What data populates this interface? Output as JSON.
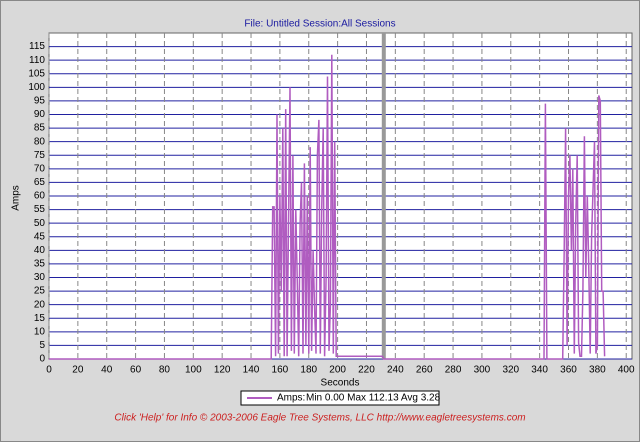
{
  "chart_data": {
    "type": "line",
    "title": "File: Untitled   Session:All Sessions",
    "x_label": "Seconds",
    "y_label": "Amps",
    "legend_stats": "Min 0.00 Max 112.13 Avg 3.28",
    "footer": "Click 'Help' for Info   © 2003-2006 Eagle Tree Systems, LLC      http://www.eagletreesystems.com",
    "xlim": [
      0,
      404
    ],
    "ylim": [
      0,
      120
    ],
    "xticks": [
      0,
      20,
      40,
      60,
      80,
      100,
      120,
      140,
      160,
      180,
      200,
      220,
      240,
      260,
      280,
      300,
      320,
      340,
      360,
      380,
      400
    ],
    "yticks": [
      0,
      5,
      10,
      15,
      20,
      25,
      30,
      35,
      40,
      45,
      50,
      55,
      60,
      65,
      70,
      75,
      80,
      85,
      90,
      95,
      100,
      105,
      110,
      115
    ],
    "grid": true,
    "cursor_x": 232,
    "series": [
      {
        "name": "Amps:",
        "color": "#b05cc0",
        "x": [
          0,
          154,
          155,
          156,
          157,
          158,
          159,
          160,
          161,
          162,
          163,
          164,
          165,
          166,
          167,
          168,
          169,
          170,
          171,
          172,
          173,
          174,
          175,
          176,
          177,
          178,
          179,
          180,
          181,
          182,
          183,
          184,
          185,
          186,
          187,
          188,
          189,
          190,
          191,
          192,
          193,
          194,
          195,
          196,
          197,
          198,
          199,
          231,
          232,
          343,
          344,
          345,
          356,
          357,
          358,
          359,
          360,
          361,
          362,
          363,
          364,
          365,
          366,
          367,
          368,
          369,
          370,
          371,
          372,
          373,
          374,
          375,
          376,
          377,
          378,
          379,
          380,
          381,
          382,
          383,
          384,
          385
        ],
        "values": [
          0,
          0,
          56,
          56,
          1,
          90,
          2,
          60,
          25,
          85,
          1,
          92,
          1,
          50,
          100,
          3,
          75,
          2,
          55,
          30,
          1,
          50,
          65,
          2,
          72,
          5,
          60,
          2,
          78,
          3,
          40,
          20,
          2,
          75,
          88,
          2,
          55,
          85,
          1,
          30,
          104,
          3,
          20,
          112,
          2,
          80,
          1,
          1,
          0,
          0,
          94,
          0,
          0,
          40,
          85,
          5,
          60,
          75,
          40,
          70,
          2,
          50,
          75,
          6,
          1,
          1,
          25,
          82,
          30,
          60,
          35,
          2,
          45,
          62,
          80,
          2,
          5,
          97,
          95,
          25,
          25,
          1
        ]
      }
    ]
  }
}
